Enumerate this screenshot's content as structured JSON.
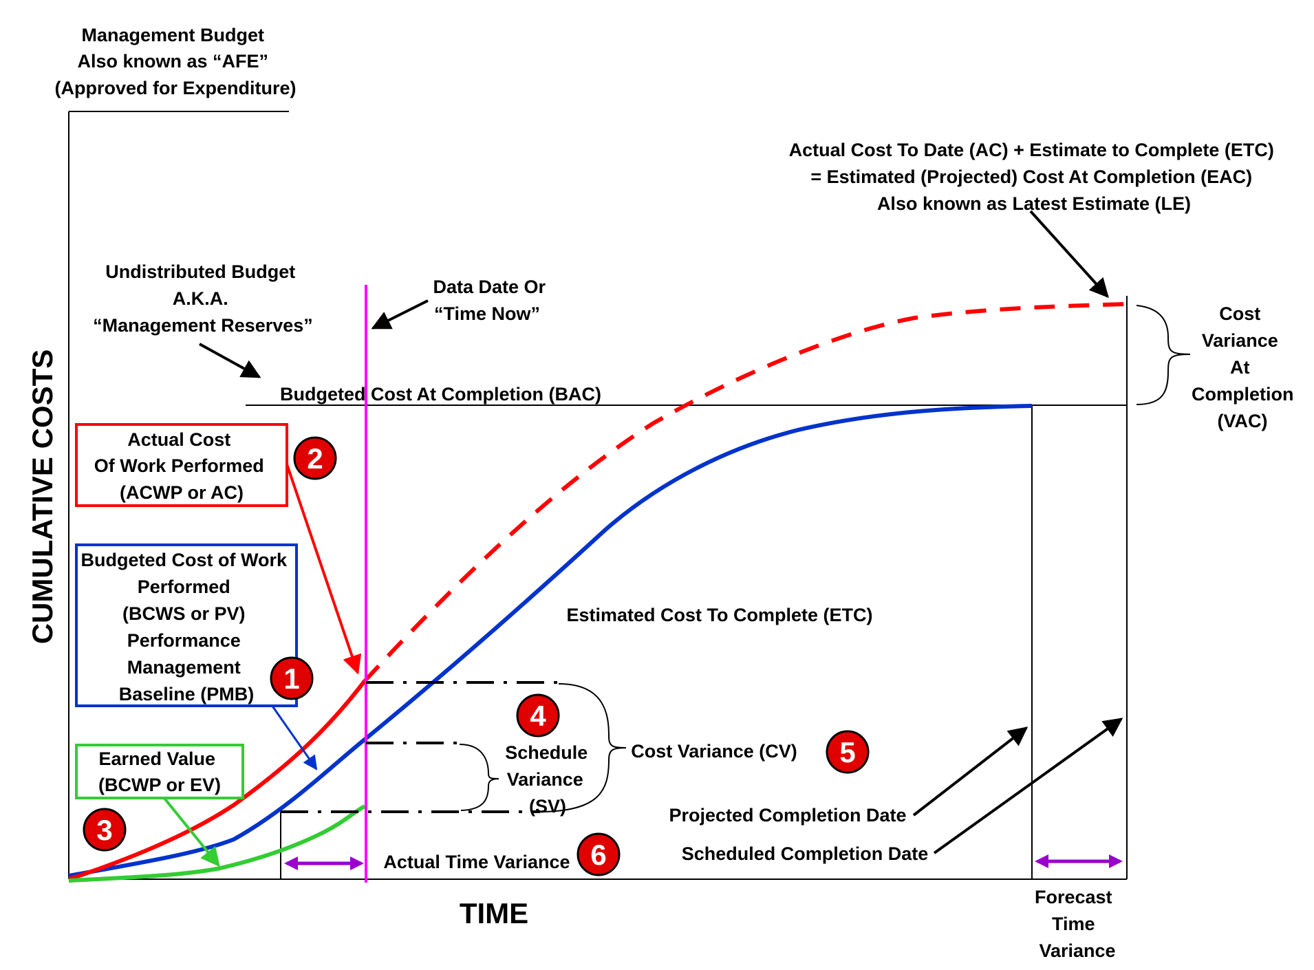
{
  "colors": {
    "actual": "#ff0000",
    "planned": "#0033cc",
    "earned": "#33cc33",
    "data_date": "#ff00ff",
    "time_variance": "#9900cc",
    "badge": "#e00000",
    "ink": "#000000"
  },
  "axes": {
    "y_title": "CUMULATIVE COSTS",
    "x_title": "TIME"
  },
  "labels": {
    "management_budget": [
      "Management Budget",
      "Also known as “AFE”",
      "(Approved for Expenditure)"
    ],
    "eac": [
      "Actual Cost To Date (AC) + Estimate to Complete (ETC)",
      "= Estimated (Projected) Cost At Completion (EAC)",
      "Also known as Latest Estimate (LE)"
    ],
    "undistributed": [
      "Undistributed Budget",
      "A.K.A.",
      "“Management Reserves”"
    ],
    "data_date": [
      "Data Date Or",
      "“Time Now”"
    ],
    "vac": [
      "Cost",
      "Variance",
      "At",
      "Completion",
      "(VAC)"
    ],
    "bac": "Budgeted Cost At Completion (BAC)",
    "acwp": [
      "Actual Cost",
      "Of Work Performed",
      "(ACWP or AC)"
    ],
    "bcws": [
      "Budgeted Cost of Work",
      "Performed",
      "(BCWS or PV)",
      "Performance",
      "Management",
      "Baseline (PMB)"
    ],
    "earned_value": [
      "Earned Value",
      "(BCWP or EV)"
    ],
    "etc": "Estimated Cost To Complete (ETC)",
    "schedule_variance": [
      "Schedule",
      "Variance",
      "(SV)"
    ],
    "cost_variance": "Cost Variance (CV)",
    "projected_completion": "Projected Completion Date",
    "scheduled_completion": "Scheduled Completion Date",
    "actual_time_variance": "Actual Time Variance",
    "forecast_time_variance": [
      "Forecast",
      "Time",
      "Variance"
    ]
  },
  "badges": [
    "1",
    "2",
    "3",
    "4",
    "5",
    "6"
  ]
}
